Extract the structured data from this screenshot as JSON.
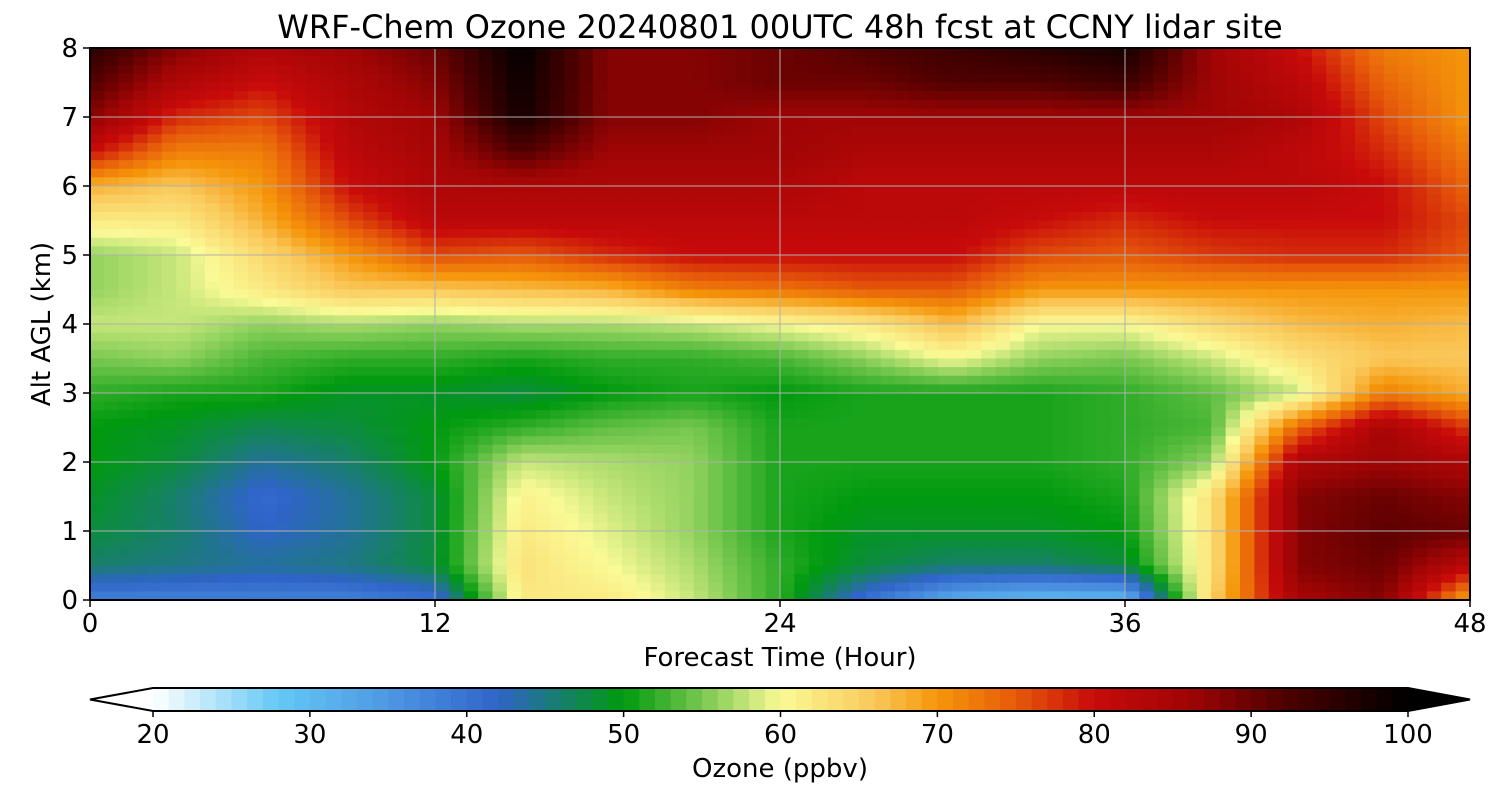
{
  "chart_data": {
    "type": "heatmap",
    "title": "WRF-Chem Ozone  20240801 00UTC 48h fcst at CCNY lidar site",
    "xlabel": "Forecast Time (Hour)",
    "ylabel": "Alt AGL (km)",
    "xlim": [
      0,
      48
    ],
    "ylim": [
      0,
      8
    ],
    "x_ticks": [
      0,
      12,
      24,
      36,
      48
    ],
    "y_ticks": [
      0,
      1,
      2,
      3,
      4,
      5,
      6,
      7,
      8
    ],
    "grid": true,
    "colorbar": {
      "label": "Ozone  (ppbv)",
      "min": 20,
      "max": 100,
      "ticks": [
        20,
        30,
        40,
        50,
        60,
        70,
        80,
        90,
        100
      ],
      "extend": "both",
      "orientation": "horizontal",
      "color_stops": [
        {
          "v": 20,
          "c": "#ffffff"
        },
        {
          "v": 28,
          "c": "#64c8f5"
        },
        {
          "v": 36,
          "c": "#4a90e0"
        },
        {
          "v": 42,
          "c": "#2f64c8"
        },
        {
          "v": 50,
          "c": "#009a0e"
        },
        {
          "v": 55,
          "c": "#78c850"
        },
        {
          "v": 60,
          "c": "#fafa96"
        },
        {
          "v": 66,
          "c": "#fac85a"
        },
        {
          "v": 70,
          "c": "#f5960a"
        },
        {
          "v": 75,
          "c": "#e65a0a"
        },
        {
          "v": 80,
          "c": "#c80a0a"
        },
        {
          "v": 86,
          "c": "#a00505"
        },
        {
          "v": 92,
          "c": "#500000"
        },
        {
          "v": 100,
          "c": "#000000"
        }
      ]
    },
    "x": [
      0,
      3,
      6,
      9,
      12,
      15,
      18,
      21,
      24,
      27,
      30,
      33,
      36,
      39,
      42,
      45,
      48
    ],
    "y": [
      0,
      0.5,
      1,
      1.5,
      2,
      2.5,
      3,
      3.5,
      4,
      4.5,
      5,
      5.5,
      6,
      6.5,
      7,
      7.5,
      8
    ],
    "z": [
      [
        38,
        38,
        38,
        38,
        40,
        62,
        62,
        58,
        52,
        40,
        32,
        30,
        30,
        65,
        85,
        88,
        68
      ],
      [
        46,
        45,
        44,
        45,
        48,
        63,
        60,
        57,
        52,
        48,
        46,
        46,
        48,
        63,
        88,
        90,
        82
      ],
      [
        48,
        46,
        42,
        44,
        48,
        62,
        59,
        56,
        51,
        49,
        49,
        49,
        50,
        63,
        88,
        91,
        90
      ],
      [
        49,
        46,
        41,
        44,
        48,
        61,
        58,
        56,
        51,
        50,
        50,
        50,
        51,
        63,
        88,
        90,
        88
      ],
      [
        50,
        48,
        44,
        46,
        50,
        58,
        57,
        56,
        51,
        51,
        51,
        51,
        52,
        56,
        84,
        86,
        84
      ],
      [
        50,
        49,
        47,
        48,
        50,
        52,
        54,
        55,
        51,
        51,
        51,
        51,
        52,
        53,
        74,
        85,
        77
      ],
      [
        52,
        51,
        51,
        49,
        49,
        48,
        50,
        51,
        50,
        51,
        51,
        51,
        52,
        54,
        58,
        72,
        68
      ],
      [
        55,
        56,
        53,
        52,
        52,
        51,
        52,
        52,
        53,
        56,
        60,
        56,
        55,
        58,
        63,
        66,
        66
      ],
      [
        58,
        58,
        56,
        57,
        56,
        57,
        57,
        58,
        60,
        62,
        67,
        60,
        60,
        64,
        67,
        68,
        67
      ],
      [
        56,
        58,
        62,
        66,
        66,
        67,
        68,
        72,
        73,
        75,
        75,
        70,
        70,
        70,
        70,
        70,
        70
      ],
      [
        56,
        58,
        64,
        70,
        76,
        75,
        78,
        80,
        80,
        80,
        80,
        76,
        75,
        77,
        78,
        78,
        75
      ],
      [
        62,
        62,
        68,
        76,
        82,
        82,
        82,
        82,
        82,
        82,
        82,
        80,
        78,
        80,
        80,
        80,
        76
      ],
      [
        68,
        66,
        70,
        80,
        84,
        84,
        84,
        84,
        84,
        82,
        82,
        82,
        82,
        82,
        82,
        80,
        74
      ],
      [
        80,
        72,
        72,
        82,
        85,
        92,
        86,
        86,
        86,
        84,
        84,
        84,
        84,
        84,
        82,
        78,
        72
      ],
      [
        88,
        78,
        76,
        83,
        86,
        98,
        88,
        88,
        86,
        86,
        86,
        86,
        86,
        86,
        84,
        76,
        70
      ],
      [
        92,
        84,
        80,
        84,
        88,
        99,
        88,
        88,
        90,
        90,
        92,
        92,
        94,
        86,
        82,
        74,
        70
      ],
      [
        96,
        88,
        84,
        86,
        90,
        100,
        88,
        88,
        90,
        92,
        94,
        96,
        98,
        86,
        80,
        72,
        70
      ]
    ]
  }
}
